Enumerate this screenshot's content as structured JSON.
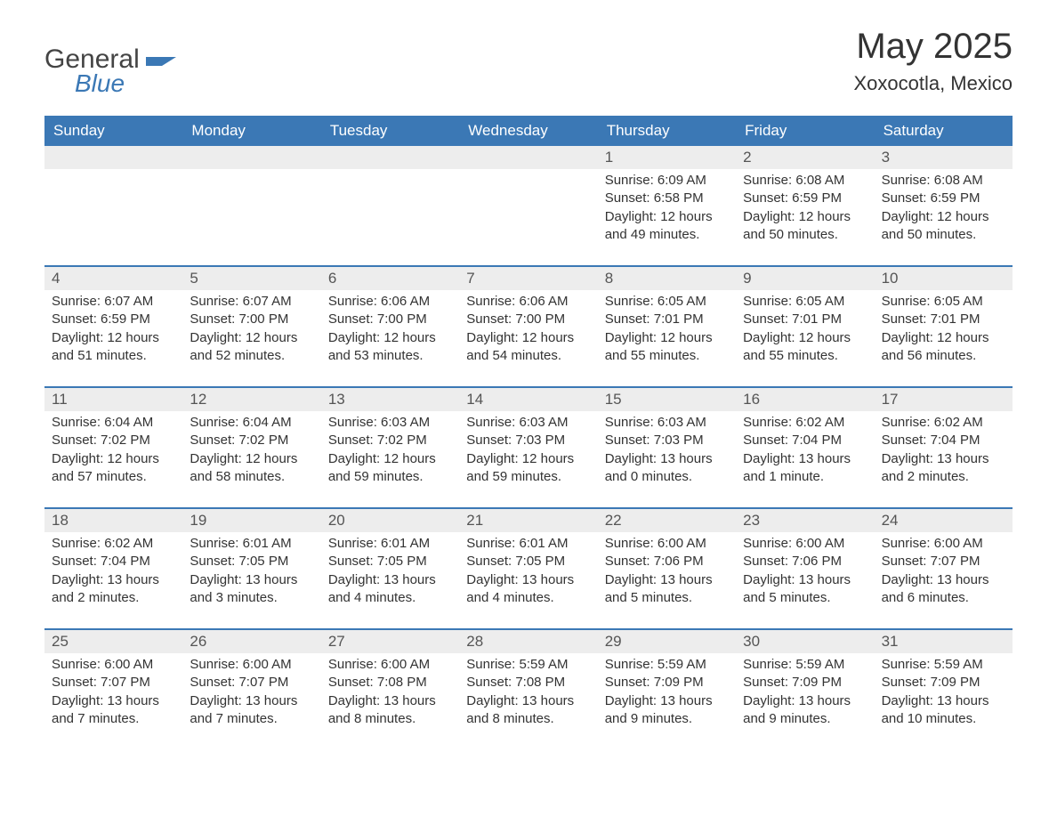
{
  "brand": {
    "word1": "General",
    "word2": "Blue",
    "flag_color": "#3b78b5",
    "text_color": "#444444"
  },
  "header": {
    "title": "May 2025",
    "location": "Xoxocotla, Mexico"
  },
  "colors": {
    "header_bg": "#3b78b5",
    "header_text": "#ffffff",
    "row_divider": "#3b78b5",
    "daynum_bg": "#ededed",
    "body_text": "#333333",
    "background": "#ffffff"
  },
  "labels": {
    "sunrise": "Sunrise",
    "sunset": "Sunset",
    "daylight": "Daylight"
  },
  "day_names": [
    "Sunday",
    "Monday",
    "Tuesday",
    "Wednesday",
    "Thursday",
    "Friday",
    "Saturday"
  ],
  "weeks": [
    [
      null,
      null,
      null,
      null,
      {
        "d": "1",
        "sr": "6:09 AM",
        "ss": "6:58 PM",
        "dl": "12 hours and 49 minutes."
      },
      {
        "d": "2",
        "sr": "6:08 AM",
        "ss": "6:59 PM",
        "dl": "12 hours and 50 minutes."
      },
      {
        "d": "3",
        "sr": "6:08 AM",
        "ss": "6:59 PM",
        "dl": "12 hours and 50 minutes."
      }
    ],
    [
      {
        "d": "4",
        "sr": "6:07 AM",
        "ss": "6:59 PM",
        "dl": "12 hours and 51 minutes."
      },
      {
        "d": "5",
        "sr": "6:07 AM",
        "ss": "7:00 PM",
        "dl": "12 hours and 52 minutes."
      },
      {
        "d": "6",
        "sr": "6:06 AM",
        "ss": "7:00 PM",
        "dl": "12 hours and 53 minutes."
      },
      {
        "d": "7",
        "sr": "6:06 AM",
        "ss": "7:00 PM",
        "dl": "12 hours and 54 minutes."
      },
      {
        "d": "8",
        "sr": "6:05 AM",
        "ss": "7:01 PM",
        "dl": "12 hours and 55 minutes."
      },
      {
        "d": "9",
        "sr": "6:05 AM",
        "ss": "7:01 PM",
        "dl": "12 hours and 55 minutes."
      },
      {
        "d": "10",
        "sr": "6:05 AM",
        "ss": "7:01 PM",
        "dl": "12 hours and 56 minutes."
      }
    ],
    [
      {
        "d": "11",
        "sr": "6:04 AM",
        "ss": "7:02 PM",
        "dl": "12 hours and 57 minutes."
      },
      {
        "d": "12",
        "sr": "6:04 AM",
        "ss": "7:02 PM",
        "dl": "12 hours and 58 minutes."
      },
      {
        "d": "13",
        "sr": "6:03 AM",
        "ss": "7:02 PM",
        "dl": "12 hours and 59 minutes."
      },
      {
        "d": "14",
        "sr": "6:03 AM",
        "ss": "7:03 PM",
        "dl": "12 hours and 59 minutes."
      },
      {
        "d": "15",
        "sr": "6:03 AM",
        "ss": "7:03 PM",
        "dl": "13 hours and 0 minutes."
      },
      {
        "d": "16",
        "sr": "6:02 AM",
        "ss": "7:04 PM",
        "dl": "13 hours and 1 minute."
      },
      {
        "d": "17",
        "sr": "6:02 AM",
        "ss": "7:04 PM",
        "dl": "13 hours and 2 minutes."
      }
    ],
    [
      {
        "d": "18",
        "sr": "6:02 AM",
        "ss": "7:04 PM",
        "dl": "13 hours and 2 minutes."
      },
      {
        "d": "19",
        "sr": "6:01 AM",
        "ss": "7:05 PM",
        "dl": "13 hours and 3 minutes."
      },
      {
        "d": "20",
        "sr": "6:01 AM",
        "ss": "7:05 PM",
        "dl": "13 hours and 4 minutes."
      },
      {
        "d": "21",
        "sr": "6:01 AM",
        "ss": "7:05 PM",
        "dl": "13 hours and 4 minutes."
      },
      {
        "d": "22",
        "sr": "6:00 AM",
        "ss": "7:06 PM",
        "dl": "13 hours and 5 minutes."
      },
      {
        "d": "23",
        "sr": "6:00 AM",
        "ss": "7:06 PM",
        "dl": "13 hours and 5 minutes."
      },
      {
        "d": "24",
        "sr": "6:00 AM",
        "ss": "7:07 PM",
        "dl": "13 hours and 6 minutes."
      }
    ],
    [
      {
        "d": "25",
        "sr": "6:00 AM",
        "ss": "7:07 PM",
        "dl": "13 hours and 7 minutes."
      },
      {
        "d": "26",
        "sr": "6:00 AM",
        "ss": "7:07 PM",
        "dl": "13 hours and 7 minutes."
      },
      {
        "d": "27",
        "sr": "6:00 AM",
        "ss": "7:08 PM",
        "dl": "13 hours and 8 minutes."
      },
      {
        "d": "28",
        "sr": "5:59 AM",
        "ss": "7:08 PM",
        "dl": "13 hours and 8 minutes."
      },
      {
        "d": "29",
        "sr": "5:59 AM",
        "ss": "7:09 PM",
        "dl": "13 hours and 9 minutes."
      },
      {
        "d": "30",
        "sr": "5:59 AM",
        "ss": "7:09 PM",
        "dl": "13 hours and 9 minutes."
      },
      {
        "d": "31",
        "sr": "5:59 AM",
        "ss": "7:09 PM",
        "dl": "13 hours and 10 minutes."
      }
    ]
  ]
}
